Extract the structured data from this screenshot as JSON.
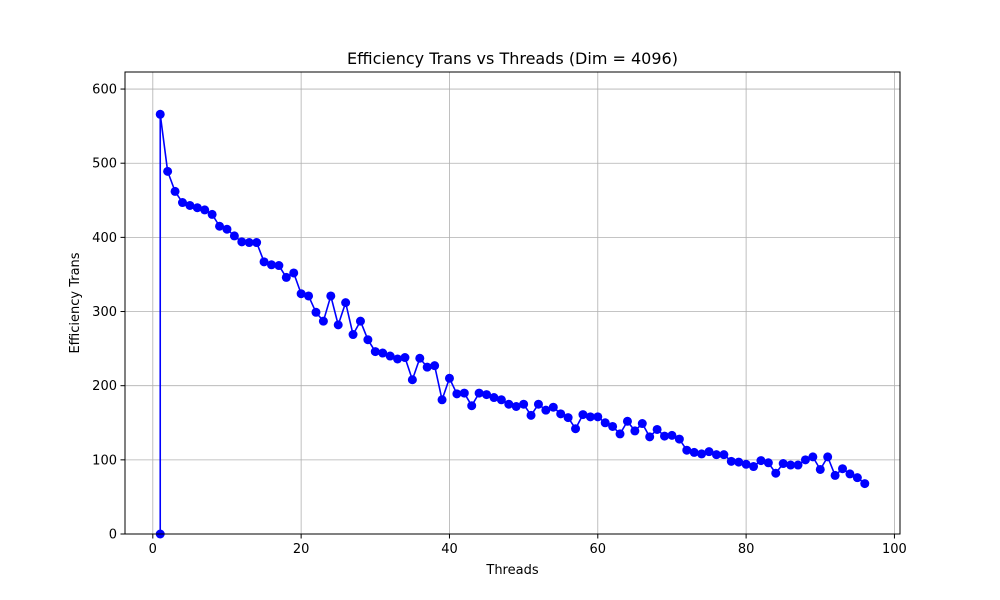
{
  "chart_data": {
    "type": "line",
    "title": "Efficiency Trans vs Threads (Dim = 4096)",
    "xlabel": "Threads",
    "ylabel": "Efficiency Trans",
    "xlim": [
      -3.75,
      100.75
    ],
    "ylim": [
      0,
      623
    ],
    "xticks": [
      0,
      20,
      40,
      60,
      80,
      100
    ],
    "yticks": [
      0,
      100,
      200,
      300,
      400,
      500,
      600
    ],
    "grid": true,
    "legend": "none",
    "series": [
      {
        "color": "#0000ff",
        "marker": "circle",
        "x": [
          1,
          1,
          2,
          3,
          4,
          5,
          6,
          7,
          8,
          9,
          10,
          11,
          12,
          13,
          14,
          15,
          16,
          17,
          18,
          19,
          20,
          21,
          22,
          23,
          24,
          25,
          26,
          27,
          28,
          29,
          30,
          31,
          32,
          33,
          34,
          35,
          36,
          37,
          38,
          39,
          40,
          41,
          42,
          43,
          44,
          45,
          46,
          47,
          48,
          49,
          50,
          51,
          52,
          53,
          54,
          55,
          56,
          57,
          58,
          59,
          60,
          61,
          62,
          63,
          64,
          65,
          66,
          67,
          68,
          69,
          70,
          71,
          72,
          73,
          74,
          75,
          76,
          77,
          78,
          79,
          80,
          81,
          82,
          83,
          84,
          85,
          86,
          87,
          88,
          89,
          90,
          91,
          92,
          93,
          94,
          95,
          96
        ],
        "y": [
          0,
          566,
          489,
          462,
          447,
          443,
          440,
          437,
          431,
          415,
          411,
          402,
          394,
          393,
          393,
          367,
          363,
          362,
          346,
          352,
          324,
          321,
          299,
          287,
          321,
          282,
          312,
          269,
          287,
          262,
          246,
          244,
          240,
          236,
          238,
          208,
          237,
          225,
          227,
          181,
          210,
          189,
          190,
          173,
          190,
          188,
          184,
          181,
          175,
          172,
          175,
          160,
          175,
          167,
          171,
          162,
          157,
          142,
          161,
          158,
          158,
          150,
          145,
          135,
          152,
          139,
          149,
          131,
          141,
          132,
          133,
          128,
          113,
          110,
          108,
          111,
          107,
          107,
          98,
          97,
          94,
          91,
          99,
          96,
          82,
          95,
          93,
          93,
          100,
          104,
          87,
          104,
          79,
          88,
          81,
          76,
          68
        ]
      }
    ]
  }
}
